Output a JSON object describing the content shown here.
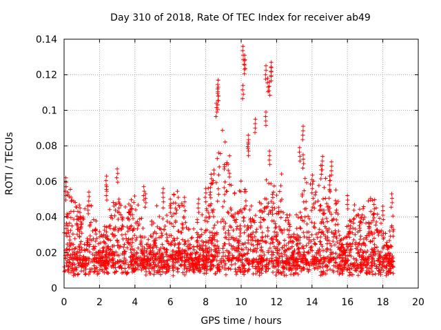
{
  "chart_data": {
    "type": "scatter",
    "title": "Day 310 of 2018, Rate Of TEC Index for receiver ab49",
    "xlabel": "GPS time / hours",
    "ylabel": "ROTI / TECUs",
    "xlim": [
      0,
      20
    ],
    "ylim": [
      0,
      0.14
    ],
    "xticks": [
      "0",
      "2",
      "4",
      "6",
      "8",
      "10",
      "12",
      "14",
      "16",
      "18",
      "20"
    ],
    "yticks": [
      "0",
      "0.02",
      "0.04",
      "0.06",
      "0.08",
      "0.1",
      "0.12",
      "0.14"
    ],
    "grid": true,
    "marker": "+",
    "color": "#ff0000",
    "x_range_of_data": [
      0,
      18.6
    ],
    "series": [
      {
        "marker": "+",
        "color": "#ff0000",
        "envelope_note_points": [
          [
            0.1,
            0.062
          ],
          [
            0.1,
            0.057
          ],
          [
            0.9,
            0.045
          ],
          [
            1.4,
            0.054
          ],
          [
            2.4,
            0.063
          ],
          [
            2.4,
            0.057
          ],
          [
            3.0,
            0.067
          ],
          [
            3.1,
            0.05
          ],
          [
            4.5,
            0.057
          ],
          [
            4.6,
            0.053
          ],
          [
            5.6,
            0.056
          ],
          [
            6.0,
            0.05
          ],
          [
            6.8,
            0.051
          ],
          [
            7.6,
            0.05
          ],
          [
            8.0,
            0.056
          ],
          [
            8.3,
            0.064
          ],
          [
            8.7,
            0.117
          ],
          [
            8.7,
            0.113
          ],
          [
            8.7,
            0.108
          ],
          [
            8.6,
            0.104
          ],
          [
            10.1,
            0.136
          ],
          [
            10.2,
            0.131
          ],
          [
            10.2,
            0.128
          ],
          [
            10.1,
            0.114
          ],
          [
            10.4,
            0.086
          ],
          [
            10.4,
            0.082
          ],
          [
            10.8,
            0.095
          ],
          [
            11.4,
            0.125
          ],
          [
            11.5,
            0.118
          ],
          [
            11.6,
            0.116
          ],
          [
            11.4,
            0.099
          ],
          [
            11.7,
            0.127
          ],
          [
            11.7,
            0.124
          ],
          [
            11.6,
            0.077
          ],
          [
            13.3,
            0.079
          ],
          [
            13.5,
            0.091
          ],
          [
            13.5,
            0.075
          ],
          [
            14.0,
            0.061
          ],
          [
            14.6,
            0.074
          ],
          [
            14.5,
            0.069
          ],
          [
            15.1,
            0.071
          ],
          [
            15.0,
            0.063
          ],
          [
            16.0,
            0.052
          ],
          [
            17.5,
            0.047
          ],
          [
            18.0,
            0.046
          ],
          [
            18.5,
            0.053
          ]
        ]
      }
    ]
  }
}
